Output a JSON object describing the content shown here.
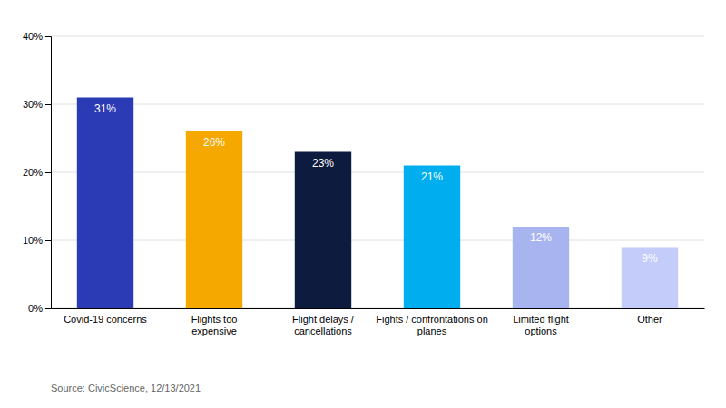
{
  "chart_data": {
    "type": "bar",
    "categories": [
      "Covid-19 concerns",
      "Flights too\nexpensive",
      "Flight delays /\ncancellations",
      "Fights / confrontations on\nplanes",
      "Limited flight\noptions",
      "Other"
    ],
    "values": [
      31,
      26,
      23,
      21,
      12,
      9
    ],
    "value_labels": [
      "31%",
      "26%",
      "23%",
      "21%",
      "12%",
      "9%"
    ],
    "data_labels": true,
    "colors": [
      "#2B3BB5",
      "#F5A800",
      "#0D1B3E",
      "#00AEEF",
      "#A8B4F0",
      "#C4CCFA"
    ],
    "ylim": [
      0,
      40
    ],
    "yticks": [
      {
        "value": 0,
        "label": "0%"
      },
      {
        "value": 10,
        "label": "10%"
      },
      {
        "value": 20,
        "label": "20%"
      },
      {
        "value": 30,
        "label": "30%"
      },
      {
        "value": 40,
        "label": "40%"
      }
    ],
    "grid": true,
    "annotations": [
      "Source: CivicScience, 12/13/2021"
    ]
  }
}
